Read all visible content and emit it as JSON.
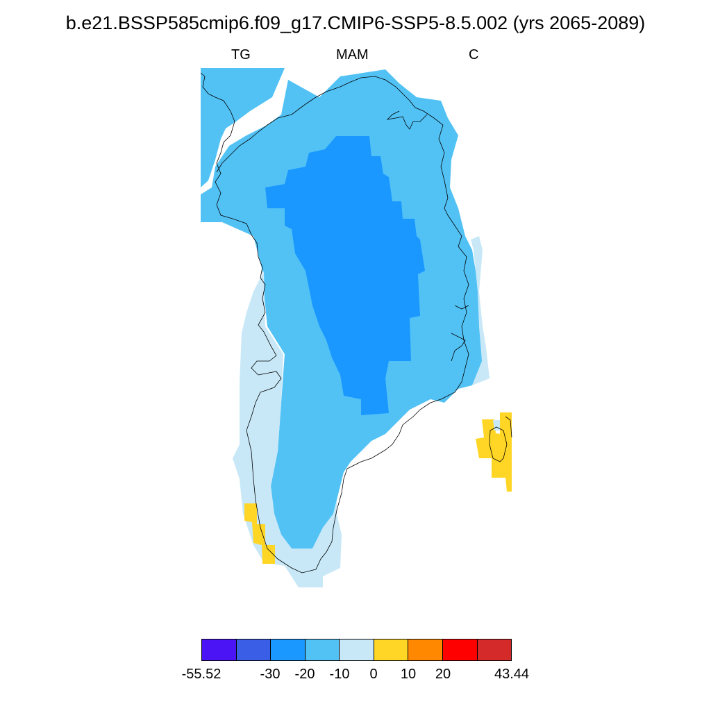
{
  "title": "b.e21.BSSP585cmip6.f09_g17.CMIP6-SSP5-8.5.002 (yrs 2065-2089)",
  "subtitle": {
    "left": "TG",
    "center": "MAM",
    "right": "C"
  },
  "colorbar": {
    "colors": [
      "#4b14f5",
      "#3b5ee6",
      "#1a98ff",
      "#52c2f5",
      "#c8e8f8",
      "#ffd626",
      "#ff8800",
      "#ff0000",
      "#d42a2a"
    ],
    "labels": [
      "-55.52",
      "-30",
      "-20",
      "-10",
      "0",
      "10",
      "20",
      "43.44"
    ]
  },
  "fills": {
    "light_blue": "#52c2f5",
    "mid_blue": "#1a98ff",
    "pale_blue": "#c8e8f8",
    "yellow": "#ffd626"
  }
}
